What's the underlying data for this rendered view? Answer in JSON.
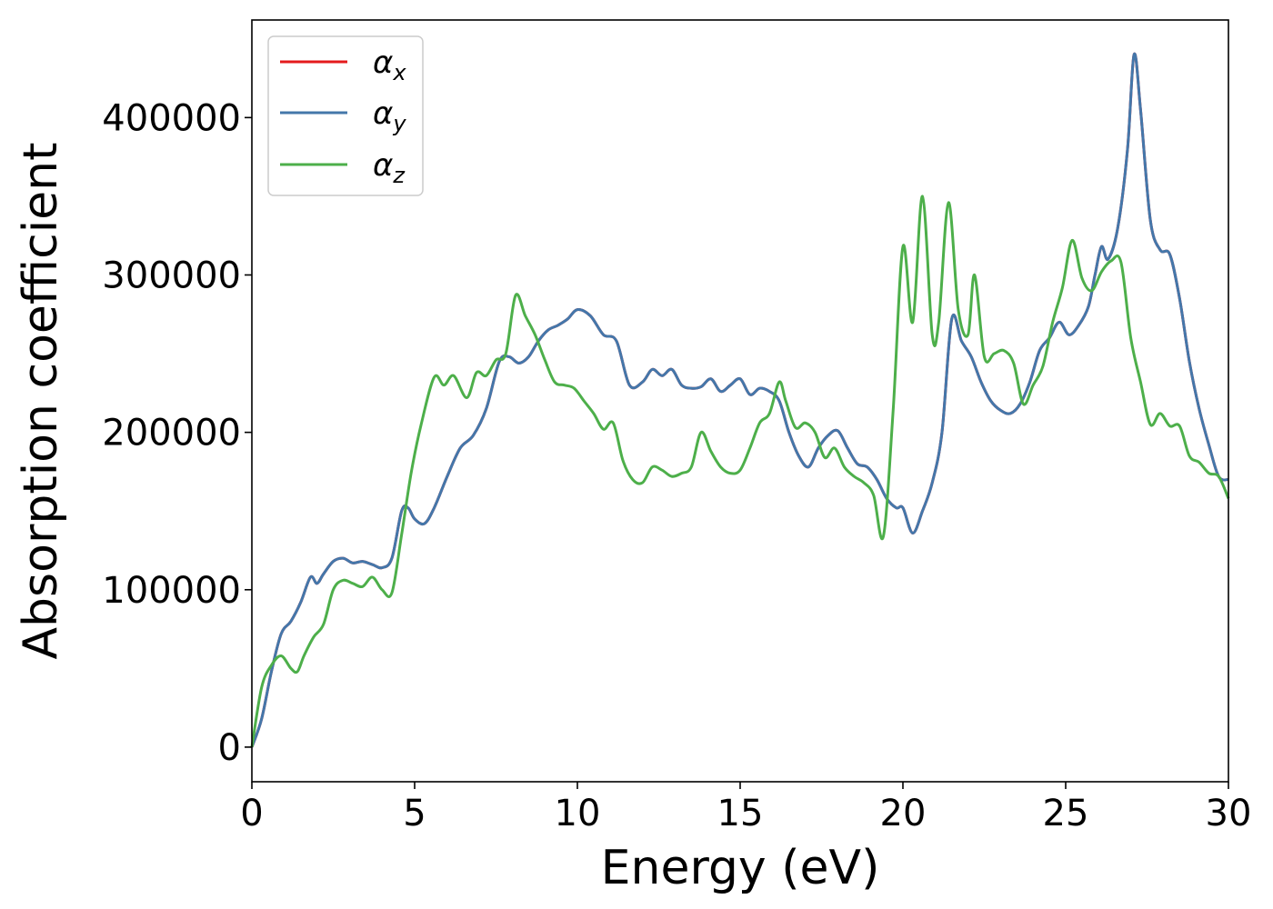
{
  "chart_data": {
    "type": "line",
    "xlabel": "Energy (eV)",
    "ylabel": "Absorption coefficient",
    "xlim": [
      0,
      30
    ],
    "ylim": [
      -22000,
      462000
    ],
    "xticks": [
      0,
      5,
      10,
      15,
      20,
      25,
      30
    ],
    "yticks": [
      0,
      100000,
      200000,
      300000,
      400000
    ],
    "grid": false,
    "legend_position": "top-left",
    "series": [
      {
        "name": "α",
        "subscript": "x",
        "color": "#e41a1c",
        "x": [
          0,
          0.3,
          0.6,
          0.9,
          1.2,
          1.5,
          1.8,
          2.0,
          2.2,
          2.5,
          2.8,
          3.1,
          3.4,
          3.7,
          4.0,
          4.3,
          4.6,
          4.8,
          5.0,
          5.3,
          5.6,
          6.0,
          6.4,
          6.8,
          7.2,
          7.6,
          7.9,
          8.2,
          8.5,
          8.8,
          9.1,
          9.4,
          9.7,
          10.0,
          10.4,
          10.8,
          11.2,
          11.6,
          12.0,
          12.3,
          12.6,
          12.9,
          13.2,
          13.5,
          13.8,
          14.1,
          14.4,
          14.7,
          15.0,
          15.3,
          15.6,
          15.9,
          16.2,
          16.5,
          16.8,
          17.1,
          17.4,
          17.7,
          18.0,
          18.3,
          18.6,
          18.9,
          19.2,
          19.5,
          19.8,
          20.0,
          20.3,
          20.6,
          20.9,
          21.2,
          21.5,
          21.8,
          22.1,
          22.4,
          22.7,
          23.0,
          23.3,
          23.6,
          23.9,
          24.2,
          24.5,
          24.8,
          25.1,
          25.4,
          25.7,
          25.9,
          26.1,
          26.3,
          26.6,
          26.9,
          27.1,
          27.3,
          27.6,
          27.9,
          28.2,
          28.5,
          28.8,
          29.1,
          29.4,
          29.7,
          30.0
        ],
        "y": [
          0,
          18000,
          48000,
          72000,
          80000,
          92000,
          108000,
          104000,
          110000,
          118000,
          120000,
          117000,
          118000,
          116000,
          114000,
          120000,
          150000,
          152000,
          145000,
          142000,
          152000,
          172000,
          190000,
          198000,
          215000,
          245000,
          248000,
          244000,
          248000,
          258000,
          265000,
          268000,
          272000,
          278000,
          274000,
          262000,
          258000,
          230000,
          232000,
          240000,
          236000,
          240000,
          230000,
          228000,
          229000,
          234000,
          226000,
          230000,
          234000,
          224000,
          228000,
          226000,
          220000,
          200000,
          185000,
          178000,
          190000,
          198000,
          201000,
          190000,
          180000,
          178000,
          170000,
          158000,
          152000,
          152000,
          136000,
          150000,
          168000,
          200000,
          272000,
          258000,
          248000,
          232000,
          220000,
          214000,
          212000,
          218000,
          232000,
          252000,
          260000,
          270000,
          262000,
          268000,
          280000,
          300000,
          318000,
          310000,
          330000,
          380000,
          440000,
          405000,
          335000,
          316000,
          313000,
          285000,
          245000,
          215000,
          192000,
          172000,
          170000
        ]
      },
      {
        "name": "α",
        "subscript": "y",
        "color": "#4477aa",
        "x": [
          0,
          0.3,
          0.6,
          0.9,
          1.2,
          1.5,
          1.8,
          2.0,
          2.2,
          2.5,
          2.8,
          3.1,
          3.4,
          3.7,
          4.0,
          4.3,
          4.6,
          4.8,
          5.0,
          5.3,
          5.6,
          6.0,
          6.4,
          6.8,
          7.2,
          7.6,
          7.9,
          8.2,
          8.5,
          8.8,
          9.1,
          9.4,
          9.7,
          10.0,
          10.4,
          10.8,
          11.2,
          11.6,
          12.0,
          12.3,
          12.6,
          12.9,
          13.2,
          13.5,
          13.8,
          14.1,
          14.4,
          14.7,
          15.0,
          15.3,
          15.6,
          15.9,
          16.2,
          16.5,
          16.8,
          17.1,
          17.4,
          17.7,
          18.0,
          18.3,
          18.6,
          18.9,
          19.2,
          19.5,
          19.8,
          20.0,
          20.3,
          20.6,
          20.9,
          21.2,
          21.5,
          21.8,
          22.1,
          22.4,
          22.7,
          23.0,
          23.3,
          23.6,
          23.9,
          24.2,
          24.5,
          24.8,
          25.1,
          25.4,
          25.7,
          25.9,
          26.1,
          26.3,
          26.6,
          26.9,
          27.1,
          27.3,
          27.6,
          27.9,
          28.2,
          28.5,
          28.8,
          29.1,
          29.4,
          29.7,
          30.0
        ],
        "y": [
          0,
          18000,
          48000,
          72000,
          80000,
          92000,
          108000,
          104000,
          110000,
          118000,
          120000,
          117000,
          118000,
          116000,
          114000,
          120000,
          150000,
          152000,
          145000,
          142000,
          152000,
          172000,
          190000,
          198000,
          215000,
          245000,
          248000,
          244000,
          248000,
          258000,
          265000,
          268000,
          272000,
          278000,
          274000,
          262000,
          258000,
          230000,
          232000,
          240000,
          236000,
          240000,
          230000,
          228000,
          229000,
          234000,
          226000,
          230000,
          234000,
          224000,
          228000,
          226000,
          220000,
          200000,
          185000,
          178000,
          190000,
          198000,
          201000,
          190000,
          180000,
          178000,
          170000,
          158000,
          152000,
          152000,
          136000,
          150000,
          168000,
          200000,
          272000,
          258000,
          248000,
          232000,
          220000,
          214000,
          212000,
          218000,
          232000,
          252000,
          260000,
          270000,
          262000,
          268000,
          280000,
          300000,
          318000,
          310000,
          330000,
          380000,
          440000,
          405000,
          335000,
          316000,
          313000,
          285000,
          245000,
          215000,
          192000,
          172000,
          170000
        ]
      },
      {
        "name": "α",
        "subscript": "z",
        "color": "#4daf4a",
        "x": [
          0,
          0.3,
          0.6,
          0.9,
          1.2,
          1.4,
          1.6,
          1.9,
          2.2,
          2.5,
          2.8,
          3.1,
          3.4,
          3.7,
          4.0,
          4.3,
          4.6,
          4.9,
          5.2,
          5.6,
          5.9,
          6.2,
          6.6,
          6.9,
          7.2,
          7.5,
          7.8,
          8.1,
          8.4,
          8.7,
          9.0,
          9.3,
          9.6,
          9.9,
          10.2,
          10.5,
          10.8,
          11.1,
          11.4,
          11.7,
          12.0,
          12.3,
          12.6,
          12.9,
          13.2,
          13.5,
          13.8,
          14.1,
          14.4,
          14.7,
          15.0,
          15.3,
          15.6,
          15.9,
          16.2,
          16.4,
          16.7,
          17.0,
          17.3,
          17.6,
          17.9,
          18.2,
          18.5,
          18.8,
          19.1,
          19.4,
          19.7,
          20.0,
          20.3,
          20.6,
          20.9,
          21.1,
          21.4,
          21.7,
          22.0,
          22.2,
          22.5,
          22.8,
          23.1,
          23.4,
          23.7,
          24.0,
          24.3,
          24.6,
          24.9,
          25.2,
          25.5,
          25.8,
          26.1,
          26.4,
          26.7,
          27.0,
          27.3,
          27.6,
          27.9,
          28.2,
          28.5,
          28.8,
          29.1,
          29.4,
          29.7,
          30.0
        ],
        "y": [
          0,
          38000,
          52000,
          58000,
          50000,
          48000,
          58000,
          70000,
          78000,
          100000,
          106000,
          104000,
          102000,
          108000,
          100000,
          98000,
          135000,
          175000,
          205000,
          235000,
          230000,
          236000,
          222000,
          238000,
          236000,
          246000,
          250000,
          287000,
          274000,
          262000,
          246000,
          232000,
          230000,
          228000,
          220000,
          212000,
          202000,
          206000,
          182000,
          170000,
          168000,
          178000,
          176000,
          172000,
          174000,
          178000,
          200000,
          188000,
          178000,
          174000,
          176000,
          190000,
          206000,
          212000,
          232000,
          220000,
          203000,
          206000,
          200000,
          184000,
          190000,
          178000,
          172000,
          168000,
          160000,
          134000,
          214000,
          318000,
          270000,
          350000,
          262000,
          270000,
          346000,
          278000,
          262000,
          300000,
          248000,
          250000,
          252000,
          244000,
          218000,
          230000,
          242000,
          270000,
          292000,
          322000,
          298000,
          290000,
          302000,
          309000,
          308000,
          260000,
          232000,
          205000,
          212000,
          204000,
          204000,
          185000,
          181000,
          174000,
          172000,
          158000
        ]
      }
    ]
  }
}
